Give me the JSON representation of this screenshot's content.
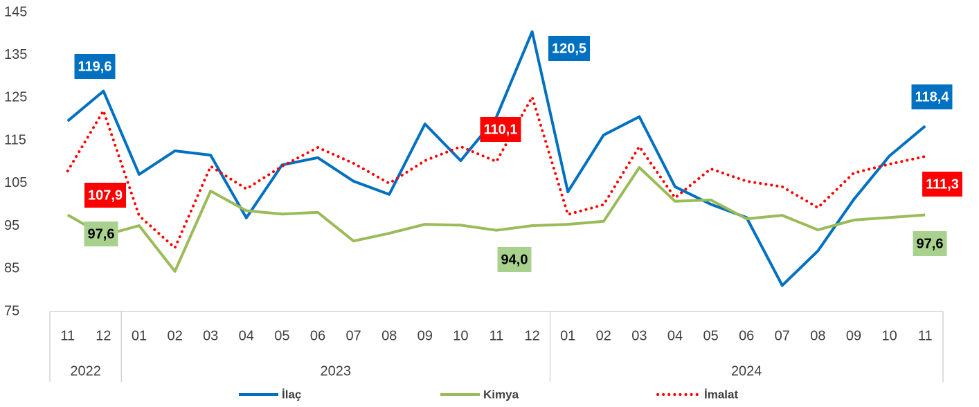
{
  "chart_data": {
    "type": "line",
    "category_groups": [
      {
        "label": "2022",
        "categories": [
          "11",
          "12"
        ]
      },
      {
        "label": "2023",
        "categories": [
          "01",
          "02",
          "03",
          "04",
          "05",
          "06",
          "07",
          "08",
          "09",
          "10",
          "11",
          "12"
        ]
      },
      {
        "label": "2024",
        "categories": [
          "01",
          "02",
          "03",
          "04",
          "05",
          "06",
          "07",
          "08",
          "09",
          "10",
          "11"
        ]
      }
    ],
    "ylim": [
      75,
      145
    ],
    "yticks": [
      75,
      85,
      95,
      105,
      115,
      125,
      135,
      145
    ],
    "grid": false,
    "legend": "bottom",
    "series": [
      {
        "name": "İlaç",
        "color": "#0070c0",
        "dash": "solid",
        "values": [
          119.6,
          126.6,
          107.1,
          112.6,
          111.6,
          96.9,
          109.3,
          111.0,
          105.5,
          102.4,
          118.9,
          110.3,
          120.5,
          140.5,
          103.0,
          116.3,
          120.6,
          104.2,
          100.1,
          97.0,
          81.1,
          89.2,
          101.2,
          111.4,
          118.4
        ],
        "value_labels": [
          "119,6",
          null,
          null,
          null,
          null,
          null,
          null,
          null,
          null,
          null,
          null,
          null,
          "120,5",
          null,
          null,
          null,
          null,
          null,
          null,
          null,
          null,
          null,
          null,
          null,
          "118,4"
        ]
      },
      {
        "name": "Kimya",
        "color": "#9bbb59",
        "dash": "solid",
        "values": [
          97.6,
          92.8,
          95.1,
          84.4,
          103.2,
          98.6,
          97.8,
          98.2,
          91.5,
          93.3,
          95.4,
          95.2,
          94.0,
          95.1,
          95.4,
          96.1,
          108.7,
          100.8,
          101.1,
          96.7,
          97.5,
          94.1,
          96.4,
          97.0,
          97.6
        ],
        "value_labels": [
          "97,6",
          null,
          null,
          null,
          null,
          null,
          null,
          null,
          null,
          null,
          null,
          null,
          "94,0",
          null,
          null,
          null,
          null,
          null,
          null,
          null,
          null,
          null,
          null,
          null,
          "97,6"
        ]
      },
      {
        "name": "İmalat",
        "color": "#ff0000",
        "dash": "dotted",
        "values": [
          107.9,
          122.0,
          97.4,
          89.9,
          109.0,
          103.7,
          109.0,
          113.4,
          109.7,
          105.0,
          110.3,
          113.6,
          110.1,
          125.2,
          97.7,
          100.0,
          113.6,
          101.6,
          108.4,
          105.5,
          104.2,
          99.3,
          107.4,
          109.5,
          111.3
        ],
        "value_labels": [
          "107,9",
          null,
          null,
          null,
          null,
          null,
          null,
          null,
          null,
          null,
          null,
          null,
          "110,1",
          null,
          null,
          null,
          null,
          null,
          null,
          null,
          null,
          null,
          null,
          null,
          "111,3"
        ]
      }
    ]
  }
}
